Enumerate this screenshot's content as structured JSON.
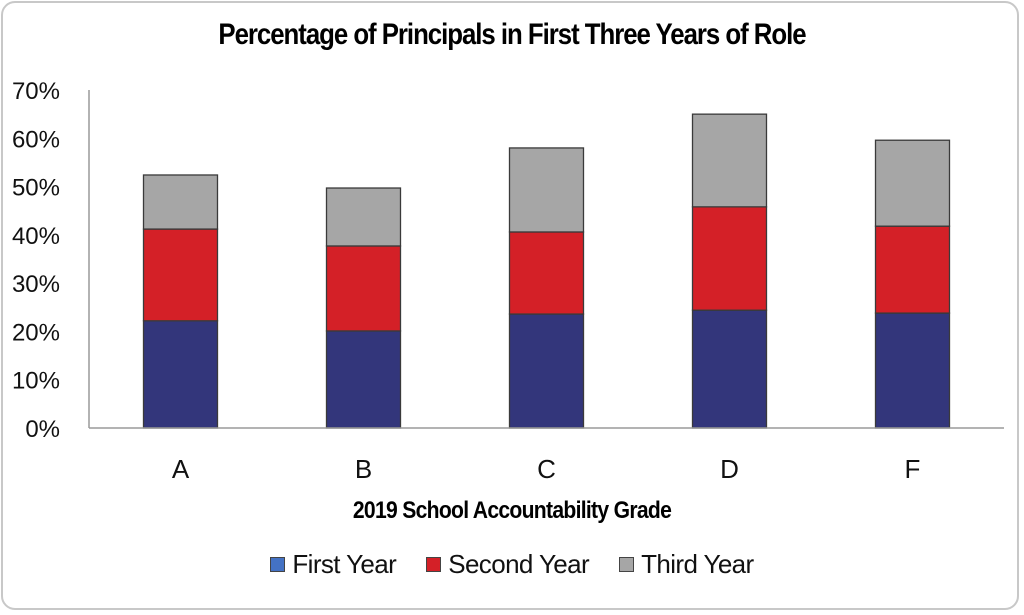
{
  "chart_data": {
    "type": "bar",
    "stacked": true,
    "title": "Percentage of Principals in First Three Years of Role",
    "xlabel": "2019 School Accountability Grade",
    "ylabel": "",
    "categories": [
      "A",
      "B",
      "C",
      "D",
      "F"
    ],
    "series": [
      {
        "name": "First Year",
        "color": "#33367B",
        "legend_color": "#4472C4",
        "values": [
          22.2,
          20.1,
          23.6,
          24.4,
          23.8
        ]
      },
      {
        "name": "Second Year",
        "color": "#D42027",
        "legend_color": "#D42027",
        "values": [
          19.0,
          17.6,
          17.0,
          21.4,
          18.0
        ]
      },
      {
        "name": "Third Year",
        "color": "#A6A6A6",
        "legend_color": "#A6A6A6",
        "values": [
          11.2,
          12.0,
          17.4,
          19.2,
          17.8
        ]
      }
    ],
    "ylim": [
      0,
      70
    ],
    "yticks": [
      0,
      10,
      20,
      30,
      40,
      50,
      60,
      70
    ],
    "ytick_labels": [
      "0%",
      "10%",
      "20%",
      "30%",
      "40%",
      "50%",
      "60%",
      "70%"
    ],
    "grid": false,
    "legend": "bottom"
  }
}
